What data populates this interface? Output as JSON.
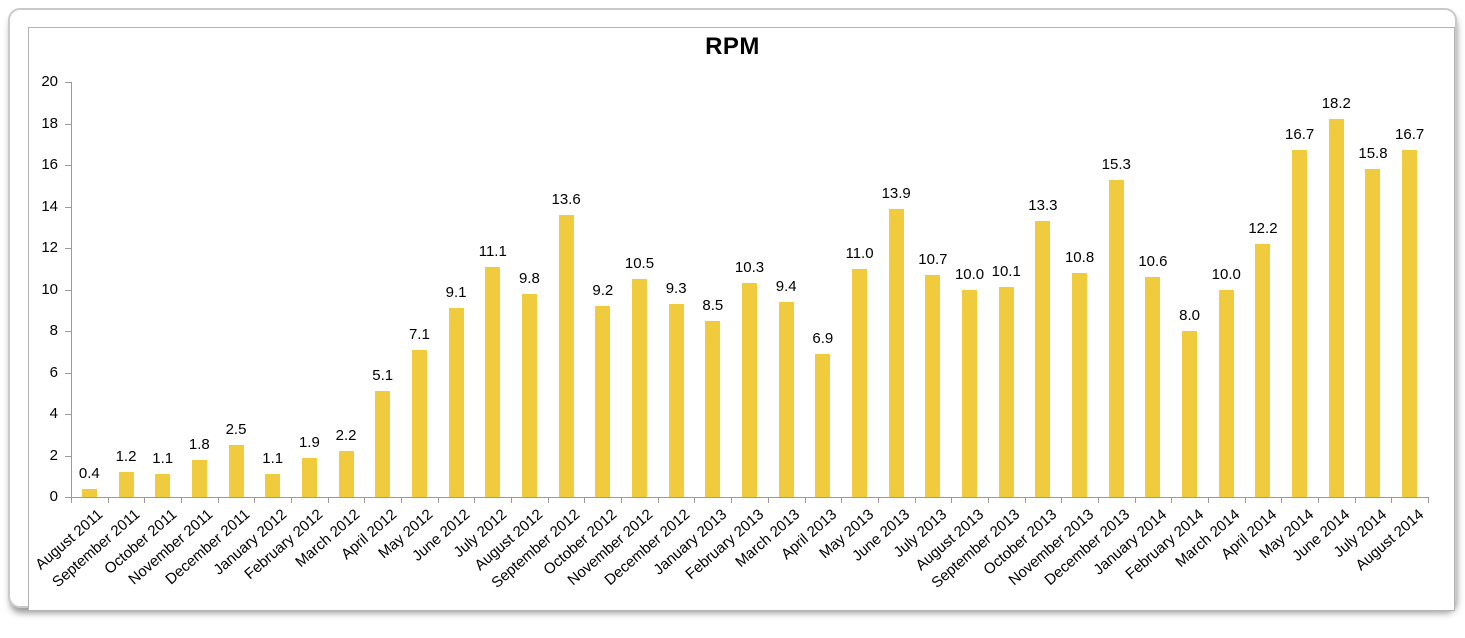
{
  "page": {
    "background_color": "#ffffff",
    "card_border_color": "#c9c9c9",
    "frame_border_color": "#b3b3b3"
  },
  "chart_data": {
    "type": "bar",
    "title": "RPM",
    "xlabel": "",
    "ylabel": "",
    "ylim": [
      0,
      20
    ],
    "yticks": [
      0,
      2,
      4,
      6,
      8,
      10,
      12,
      14,
      16,
      18,
      20
    ],
    "grid": false,
    "legend_position": "none",
    "bar_color": "#F0CB3D",
    "axis_color": "#9b9b9b",
    "text_color": "#000000",
    "value_label_decimals": 1,
    "categories": [
      "August 2011",
      "September 2011",
      "October 2011",
      "November 2011",
      "December 2011",
      "January 2012",
      "February 2012",
      "March 2012",
      "April 2012",
      "May 2012",
      "June 2012",
      "July 2012",
      "August 2012",
      "September 2012",
      "October 2012",
      "November 2012",
      "December 2012",
      "January 2013",
      "February 2013",
      "March 2013",
      "April 2013",
      "May 2013",
      "June 2013",
      "July 2013",
      "August 2013",
      "September 2013",
      "October 2013",
      "November 2013",
      "December 2013",
      "January 2014",
      "February 2014",
      "March 2014",
      "April 2014",
      "May 2014",
      "June 2014",
      "July 2014",
      "August 2014"
    ],
    "values": [
      0.4,
      1.2,
      1.1,
      1.8,
      2.5,
      1.1,
      1.9,
      2.2,
      5.1,
      7.1,
      9.1,
      11.1,
      9.8,
      13.6,
      9.2,
      10.5,
      9.3,
      8.5,
      10.3,
      9.4,
      6.9,
      11.0,
      13.9,
      10.7,
      10.0,
      10.1,
      13.3,
      10.8,
      15.3,
      10.6,
      8.0,
      10.0,
      12.2,
      16.7,
      18.2,
      15.8,
      16.7
    ]
  }
}
